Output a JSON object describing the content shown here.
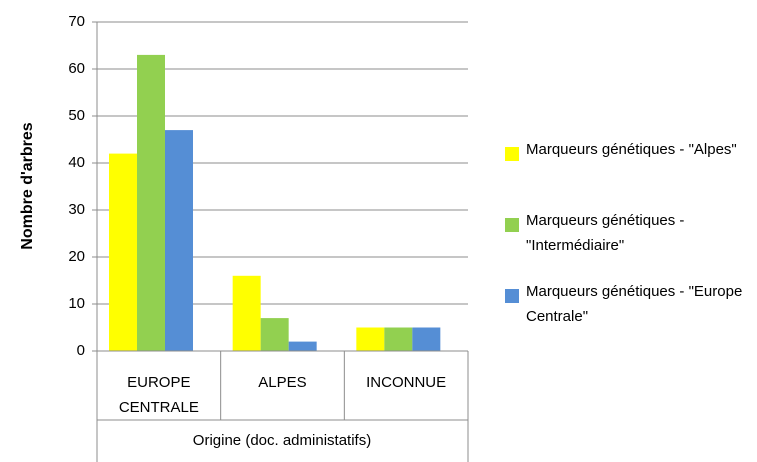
{
  "chart_data": {
    "type": "bar",
    "categories": [
      "EUROPE CENTRALE",
      "ALPES",
      "INCONNUE"
    ],
    "series": [
      {
        "name": "Marqueurs génétiques - \"Alpes\"",
        "color": "#ffff00",
        "values": [
          42,
          16,
          5
        ]
      },
      {
        "name": "Marqueurs génétiques - \"Intermédiaire\"",
        "color": "#92d050",
        "values": [
          63,
          7,
          5
        ]
      },
      {
        "name": "Marqueurs génétiques - \"Europe Centrale\"",
        "color": "#558ed5",
        "values": [
          47,
          2,
          5
        ]
      }
    ],
    "ylabel": "Nombre d'arbres",
    "xlabel": "Origine (doc. administatifs)",
    "ylim": [
      0,
      70
    ],
    "yticks": [
      0,
      10,
      20,
      30,
      40,
      50,
      60,
      70
    ],
    "grid": true,
    "legend": "right"
  }
}
